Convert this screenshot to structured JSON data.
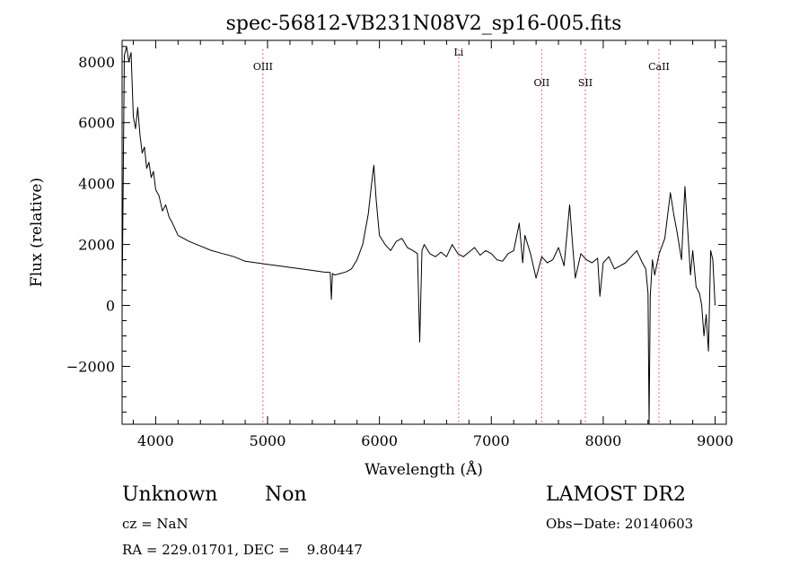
{
  "chart_data": {
    "type": "line",
    "title": "spec-56812-VB231N08V2_sp16-005.fits",
    "xlabel": "Wavelength (Å)",
    "ylabel": "Flux (relative)",
    "xlim": [
      3700,
      9100
    ],
    "ylim": [
      -3900,
      8700
    ],
    "xticks": [
      4000,
      5000,
      6000,
      7000,
      8000,
      9000
    ],
    "xtick_labels": [
      "4000",
      "5000",
      "6000",
      "7000",
      "8000",
      "9000"
    ],
    "yticks": [
      -2000,
      0,
      2000,
      4000,
      6000,
      8000
    ],
    "ytick_labels": [
      "−2000",
      "0",
      "2000",
      "4000",
      "6000",
      "8000"
    ],
    "grid": false,
    "series": [
      {
        "color": "#000000",
        "x": [
          3700,
          3720,
          3740,
          3760,
          3780,
          3800,
          3820,
          3840,
          3860,
          3880,
          3900,
          3920,
          3940,
          3960,
          3980,
          4000,
          4030,
          4060,
          4090,
          4120,
          4150,
          4200,
          4250,
          4300,
          4400,
          4500,
          4600,
          4700,
          4800,
          4900,
          5000,
          5100,
          5200,
          5300,
          5400,
          5500,
          5560,
          5570,
          5580,
          5600,
          5700,
          5750,
          5800,
          5850,
          5900,
          5930,
          5950,
          5970,
          6000,
          6050,
          6100,
          6150,
          6200,
          6250,
          6300,
          6340,
          6360,
          6380,
          6400,
          6450,
          6500,
          6550,
          6600,
          6650,
          6700,
          6750,
          6800,
          6850,
          6900,
          6950,
          7000,
          7050,
          7100,
          7150,
          7200,
          7250,
          7280,
          7300,
          7350,
          7400,
          7450,
          7500,
          7550,
          7600,
          7650,
          7700,
          7730,
          7750,
          7800,
          7850,
          7900,
          7950,
          7970,
          8000,
          8050,
          8100,
          8150,
          8200,
          8250,
          8300,
          8350,
          8380,
          8400,
          8410,
          8420,
          8440,
          8460,
          8500,
          8550,
          8600,
          8630,
          8660,
          8700,
          8730,
          8760,
          8780,
          8800,
          8830,
          8860,
          8880,
          8900,
          8920,
          8940,
          8960,
          8980,
          9000
        ],
        "y": [
          100,
          8200,
          8500,
          8000,
          8300,
          6200,
          5800,
          6500,
          5600,
          5000,
          5200,
          4500,
          4700,
          4200,
          4400,
          3800,
          3600,
          3100,
          3300,
          2900,
          2700,
          2300,
          2200,
          2100,
          1950,
          1800,
          1700,
          1600,
          1450,
          1400,
          1350,
          1300,
          1250,
          1200,
          1150,
          1100,
          1080,
          200,
          1050,
          1000,
          1100,
          1200,
          1500,
          2000,
          3000,
          4000,
          4600,
          3500,
          2300,
          2000,
          1800,
          2100,
          2200,
          1900,
          1800,
          1700,
          -1200,
          1800,
          2000,
          1700,
          1600,
          1750,
          1600,
          2000,
          1700,
          1600,
          1750,
          1900,
          1650,
          1800,
          1700,
          1500,
          1450,
          1700,
          1800,
          2700,
          1400,
          2300,
          1700,
          900,
          1600,
          1400,
          1500,
          1900,
          1300,
          3300,
          1800,
          900,
          1700,
          1500,
          1400,
          1550,
          300,
          1400,
          1600,
          1200,
          1300,
          1400,
          1600,
          1800,
          1400,
          1200,
          400,
          -3900,
          300,
          1500,
          1000,
          1700,
          2200,
          3700,
          3000,
          2400,
          1500,
          3900,
          2200,
          1000,
          1800,
          600,
          400,
          0,
          -1000,
          -300,
          -1500,
          1800,
          1500,
          0
        ]
      }
    ],
    "annotations": [
      {
        "label": "OIII",
        "x": 4959,
        "label_level": "high"
      },
      {
        "label": "Li",
        "x": 6708,
        "label_level": "top"
      },
      {
        "label": "OII",
        "x": 7450,
        "label_level": "mid"
      },
      {
        "label": "SII",
        "x": 7840,
        "label_level": "mid"
      },
      {
        "label": "CaII",
        "x": 8498,
        "label_level": "high"
      }
    ]
  },
  "footer": {
    "object_class": "Unknown",
    "subclass": "Non",
    "cz": "cz = NaN",
    "coords": "RA = 229.01701, DEC =    9.80447",
    "survey": "LAMOST DR2",
    "obs_date": "Obs−Date: 20140603"
  }
}
